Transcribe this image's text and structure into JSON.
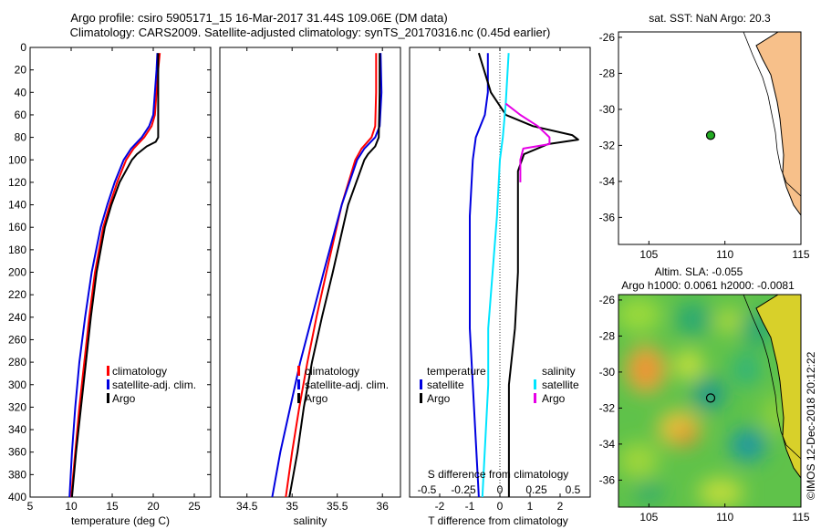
{
  "header": {
    "title_line1": "Argo profile: csiro 5905171_15 16-Mar-2017 31.44S 109.06E (DM data)",
    "title_line2": "Climatology: CARS2009. Satellite-adjusted climatology: synTS_20170316.nc (0.45d earlier)"
  },
  "colors": {
    "climatology": "#ff0000",
    "satellite": "#0000e0",
    "argo": "#000000",
    "salinity_satellite": "#00e5ff",
    "salinity_argo": "#e600e6",
    "land": "#f7c08a"
  },
  "depth_axis": {
    "ticks": [
      0,
      20,
      40,
      60,
      80,
      100,
      120,
      140,
      160,
      180,
      200,
      220,
      240,
      260,
      280,
      300,
      320,
      340,
      360,
      380,
      400
    ]
  },
  "chart_data": [
    {
      "type": "line",
      "id": "temperature",
      "xlabel": "temperature (deg C)",
      "ylabel": "",
      "xlim": [
        5,
        27
      ],
      "ylim": [
        400,
        0
      ],
      "xticks": [
        5,
        10,
        15,
        20,
        25
      ],
      "legend": [
        "climatology",
        "satellite-adj. clim.",
        "Argo"
      ],
      "series": [
        {
          "name": "climatology",
          "depth": [
            5,
            20,
            40,
            60,
            70,
            80,
            90,
            100,
            120,
            140,
            160,
            200,
            240,
            280,
            320,
            360,
            400
          ],
          "values": [
            20.8,
            20.6,
            20.4,
            20.2,
            19.8,
            18.9,
            17.6,
            16.7,
            15.6,
            14.7,
            13.9,
            12.9,
            12.2,
            11.6,
            11.0,
            10.5,
            10.0
          ]
        },
        {
          "name": "satellite-adj. clim.",
          "depth": [
            5,
            20,
            40,
            60,
            70,
            80,
            90,
            100,
            120,
            140,
            160,
            200,
            240,
            280,
            320,
            360,
            400
          ],
          "values": [
            20.5,
            20.4,
            20.2,
            20.0,
            19.5,
            18.6,
            17.3,
            16.4,
            15.3,
            14.4,
            13.6,
            12.5,
            11.7,
            11.0,
            10.5,
            10.1,
            9.8
          ]
        },
        {
          "name": "Argo",
          "depth": [
            5,
            20,
            40,
            60,
            70,
            80,
            84,
            88,
            95,
            100,
            120,
            140,
            160,
            200,
            240,
            280,
            320,
            360,
            400
          ],
          "values": [
            20.6,
            20.6,
            20.6,
            20.6,
            20.6,
            20.6,
            20.3,
            19.2,
            18.0,
            17.4,
            15.9,
            14.9,
            14.1,
            13.1,
            12.4,
            11.8,
            11.2,
            10.6,
            10.1
          ]
        }
      ]
    },
    {
      "type": "line",
      "id": "salinity",
      "xlabel": "salinity",
      "ylabel": "",
      "xlim": [
        34.2,
        36.2
      ],
      "ylim": [
        400,
        0
      ],
      "xticks": [
        34.5,
        35,
        35.5,
        36
      ],
      "legend": [
        "climatology",
        "satellite-adj. clim.",
        "Argo"
      ],
      "series": [
        {
          "name": "climatology",
          "depth": [
            5,
            40,
            70,
            80,
            90,
            100,
            140,
            200,
            240,
            280,
            320,
            360,
            400
          ],
          "values": [
            35.93,
            35.93,
            35.92,
            35.88,
            35.77,
            35.7,
            35.55,
            35.38,
            35.27,
            35.17,
            35.08,
            35.0,
            34.93
          ]
        },
        {
          "name": "satellite-adj. clim.",
          "depth": [
            5,
            40,
            70,
            80,
            90,
            100,
            140,
            200,
            240,
            280,
            320,
            360,
            400
          ],
          "values": [
            35.98,
            35.99,
            35.97,
            35.92,
            35.8,
            35.72,
            35.55,
            35.35,
            35.22,
            35.09,
            34.98,
            34.87,
            34.78
          ]
        },
        {
          "name": "Argo",
          "depth": [
            5,
            40,
            80,
            88,
            95,
            100,
            140,
            200,
            240,
            280,
            320,
            360,
            400
          ],
          "values": [
            35.97,
            35.97,
            35.96,
            35.92,
            35.84,
            35.8,
            35.62,
            35.45,
            35.33,
            35.22,
            35.13,
            35.06,
            34.97
          ]
        }
      ]
    },
    {
      "type": "line",
      "id": "differences",
      "xlabel": "T difference from climatology",
      "xlabel_top": "S difference from climatology",
      "xlim": [
        -3,
        3
      ],
      "ylim": [
        400,
        0
      ],
      "xticks": [
        -2,
        -1,
        0,
        1,
        2
      ],
      "sticks": [
        -0.5,
        -0.25,
        0,
        0.25,
        0.5
      ],
      "legend_temperature": {
        "title": "temperature",
        "items": [
          "satellite",
          "Argo"
        ]
      },
      "legend_salinity": {
        "title": "salinity",
        "items": [
          "satellite",
          "Argo"
        ]
      },
      "series": [
        {
          "name": "temperature satellite",
          "depth": [
            5,
            40,
            60,
            80,
            100,
            150,
            200,
            250,
            300,
            350,
            400
          ],
          "values": [
            -0.4,
            -0.4,
            -0.5,
            -0.8,
            -0.9,
            -1.0,
            -1.0,
            -1.0,
            -0.9,
            -0.8,
            -0.7
          ]
        },
        {
          "name": "temperature Argo",
          "depth": [
            5,
            40,
            60,
            70,
            78,
            82,
            86,
            95,
            110,
            150,
            200,
            250,
            300,
            350,
            400
          ],
          "values": [
            -0.7,
            -0.3,
            0.2,
            1.1,
            2.4,
            2.6,
            1.6,
            0.8,
            0.6,
            0.6,
            0.6,
            0.5,
            0.3,
            0.3,
            0.3
          ]
        },
        {
          "name": "salinity satellite",
          "depth": [
            5,
            50,
            80,
            100,
            150,
            200,
            250,
            300,
            350,
            400
          ],
          "values": [
            0.06,
            0.04,
            0.02,
            0.0,
            -0.02,
            -0.05,
            -0.08,
            -0.08,
            -0.1,
            -0.12
          ]
        },
        {
          "name": "salinity Argo",
          "depth": [
            50,
            60,
            70,
            80,
            86,
            90,
            100,
            120
          ],
          "values": [
            0.04,
            0.14,
            0.26,
            0.34,
            0.34,
            0.16,
            0.14,
            0.14
          ]
        }
      ]
    }
  ],
  "sst_map": {
    "title": "sat. SST: NaN Argo: 20.3",
    "xlim": [
      103,
      115
    ],
    "ylim": [
      -37.5,
      -25.7
    ],
    "xticks": [
      105,
      110,
      115
    ],
    "yticks": [
      -26,
      -28,
      -30,
      -32,
      -34,
      -36
    ],
    "float_lon": 109.06,
    "float_lat": -31.44
  },
  "sla_map": {
    "title_line1": "Altim. SLA: -0.055",
    "title_line2": "Argo h1000: 0.0061 h2000: -0.0081",
    "xlim": [
      103,
      115
    ],
    "ylim": [
      -37.5,
      -25.7
    ],
    "xticks": [
      105,
      110,
      115
    ],
    "yticks": [
      -26,
      -28,
      -30,
      -32,
      -34,
      -36
    ],
    "float_lon": 109.06,
    "float_lat": -31.44
  },
  "watermark": "©IMOS 12-Dec-2018 20:12:22"
}
